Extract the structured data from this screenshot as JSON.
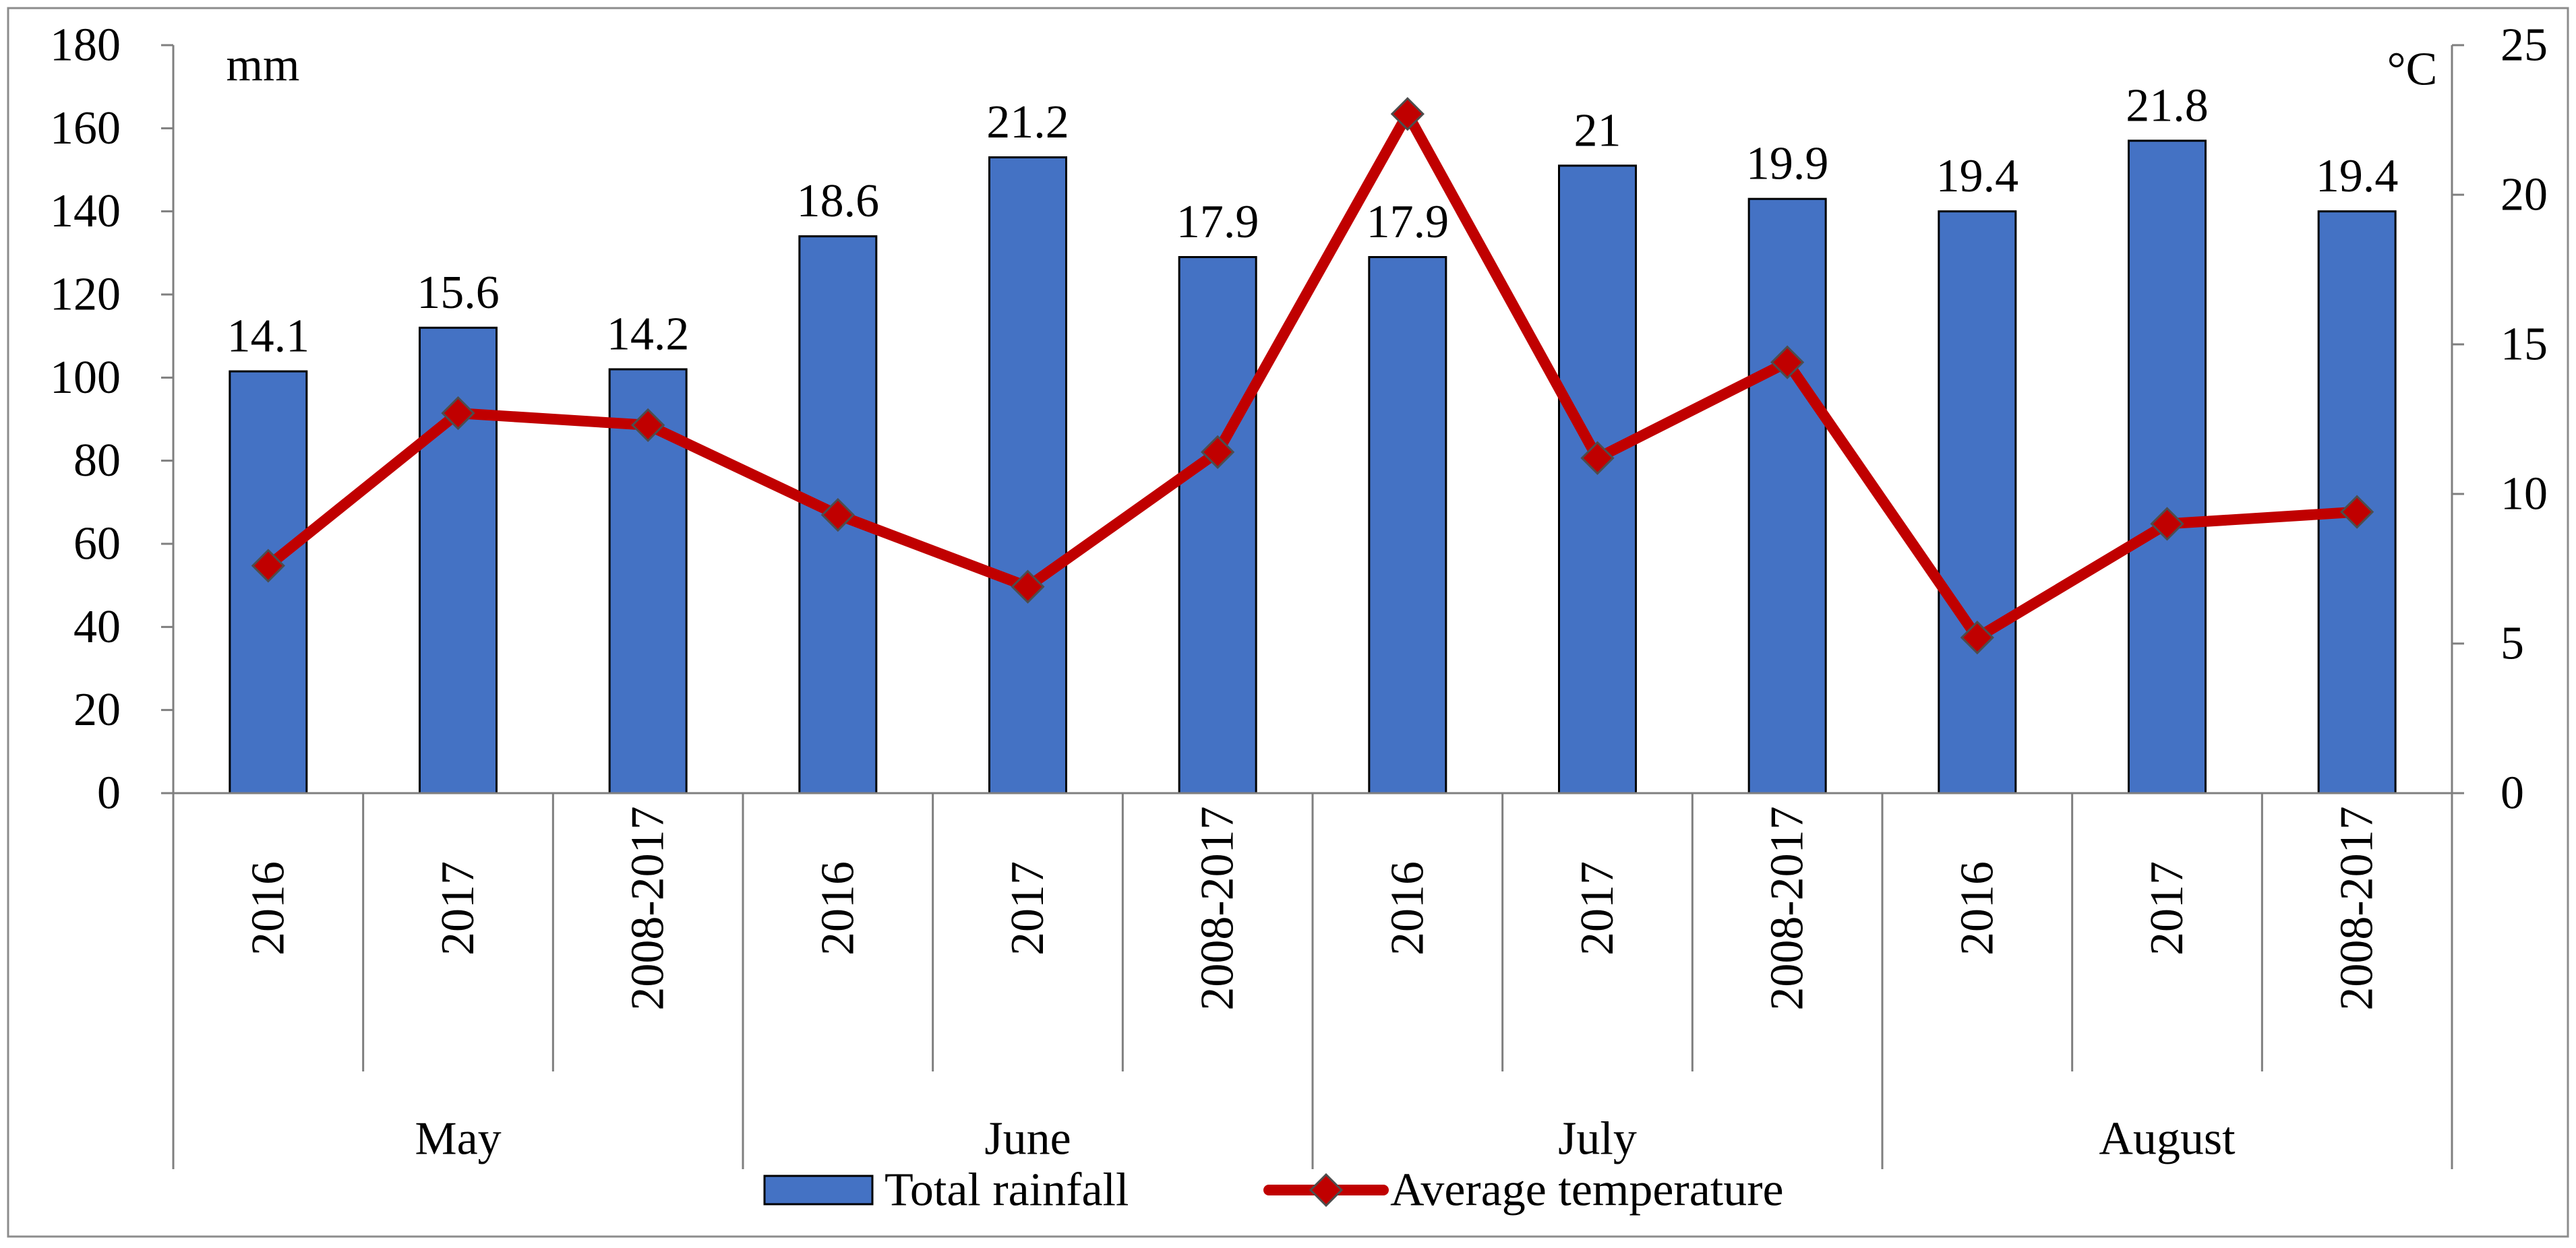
{
  "chart_data": {
    "type": "bar",
    "groups": [
      "May",
      "June",
      "July",
      "August"
    ],
    "categories": [
      "2016",
      "2017",
      "2008-2017",
      "2016",
      "2017",
      "2008-2017",
      "2016",
      "2017",
      "2008-2017",
      "2016",
      "2017",
      "2008-2017"
    ],
    "series": [
      {
        "name": "Total rainfall",
        "type": "bar",
        "axis": "left",
        "color": "#4472C4",
        "values": [
          101.5,
          112,
          102,
          134,
          153,
          129,
          129,
          151,
          143,
          140,
          157,
          140
        ]
      },
      {
        "name": "Average temperature",
        "type": "line",
        "axis": "right",
        "color": "#C00000",
        "marker": "diamond",
        "values": [
          7.6,
          12.7,
          12.3,
          9.3,
          6.9,
          11.4,
          22.7,
          11.2,
          14.4,
          5.2,
          9.0,
          9.4
        ]
      }
    ],
    "data_labels": [
      "14.1",
      "15.6",
      "14.2",
      "18.6",
      "21.2",
      "17.9",
      "17.9",
      "21",
      "19.9",
      "19.4",
      "21.8",
      "19.4"
    ],
    "y_left": {
      "unit_label": "mm",
      "ylim": [
        0,
        180
      ],
      "ticks": [
        "0",
        "20",
        "40",
        "60",
        "80",
        "100",
        "120",
        "140",
        "160",
        "180"
      ]
    },
    "y_right": {
      "unit_label": "°C",
      "ylim": [
        0,
        25
      ],
      "ticks": [
        "0",
        "5",
        "10",
        "15",
        "20",
        "25"
      ]
    },
    "legend": {
      "placement": "bottom",
      "entries": [
        "Total rainfall",
        "Average temperature"
      ]
    },
    "grid": false
  }
}
